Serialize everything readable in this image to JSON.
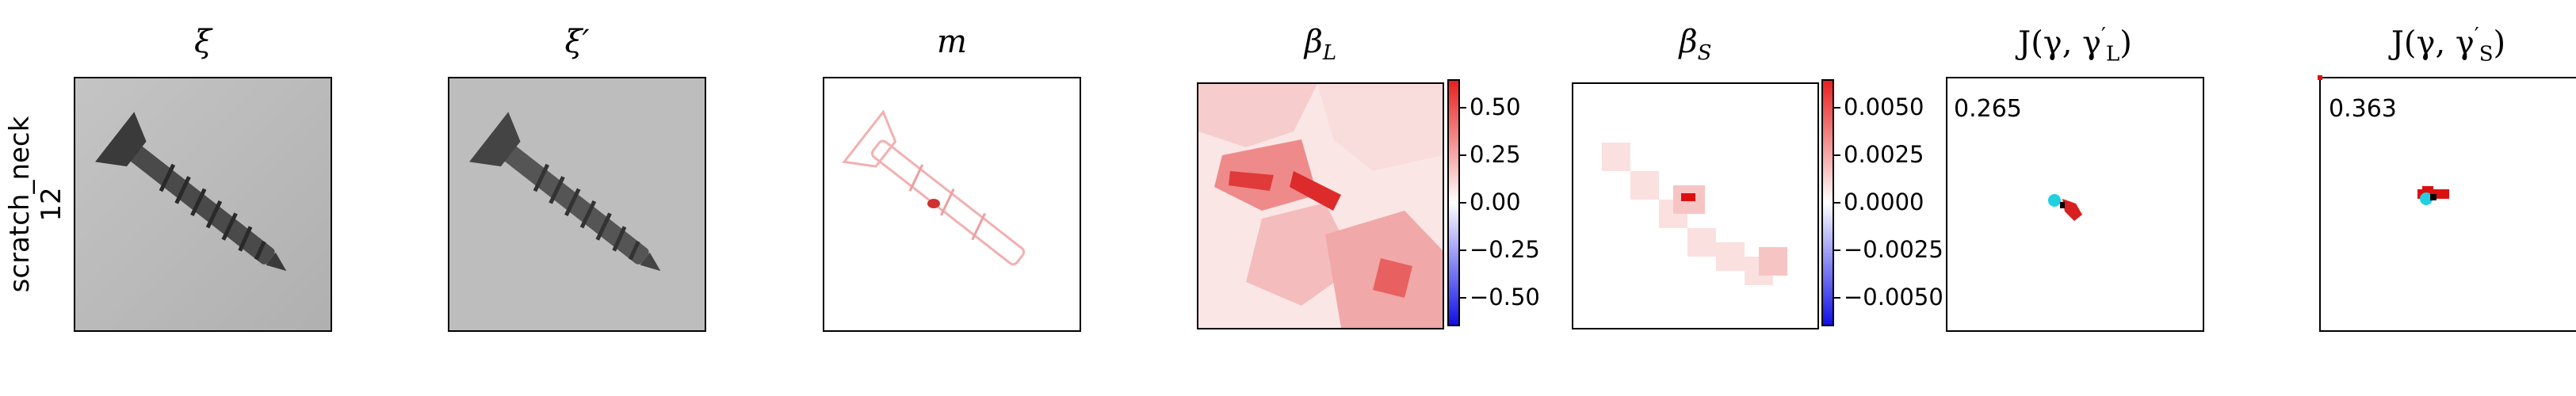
{
  "row_label": {
    "line1": "scratch_neck",
    "line2": "12"
  },
  "panels": [
    {
      "id": "xi",
      "title": "ξ"
    },
    {
      "id": "xi_prime",
      "title": "ξ′"
    },
    {
      "id": "m",
      "title": "m"
    },
    {
      "id": "beta_L",
      "title": "β",
      "sub": "L"
    },
    {
      "id": "beta_S",
      "title": "β",
      "sub": "S"
    },
    {
      "id": "J_L",
      "title_prefix": "J(γ, γ",
      "title_sub": "L",
      "title_suffix": ")",
      "score": "0.265"
    },
    {
      "id": "J_S",
      "title_prefix": "J(γ, γ",
      "title_sub": "S",
      "title_suffix": ")",
      "score": "0.363"
    }
  ],
  "colorbars": {
    "beta_L": {
      "ticks": [
        "0.50",
        "0.25",
        "0.00",
        "−0.25",
        "−0.50"
      ],
      "min": -0.65,
      "max": 0.65,
      "values": [
        0.5,
        0.25,
        0.0,
        -0.25,
        -0.5
      ]
    },
    "beta_S": {
      "ticks": [
        "0.0050",
        "0.0025",
        "0.0000",
        "−0.0025",
        "−0.0050"
      ],
      "min": -0.0065,
      "max": 0.0065,
      "values": [
        0.005,
        0.0025,
        0.0,
        -0.0025,
        -0.005
      ]
    }
  },
  "colors": {
    "pos": "#e82020",
    "neg": "#1010e8",
    "cyan": "#20d0e0"
  }
}
